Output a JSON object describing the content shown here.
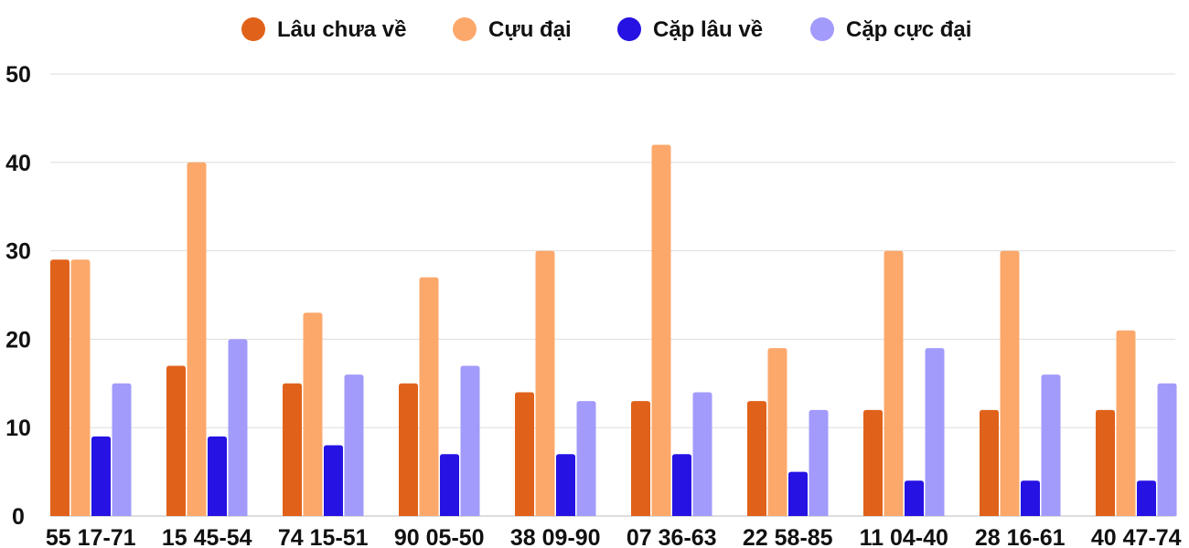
{
  "chart_data": {
    "type": "bar",
    "title": "",
    "xlabel": "",
    "ylabel": "",
    "ylim": [
      0,
      50
    ],
    "yticks": [
      0,
      10,
      20,
      30,
      40,
      50
    ],
    "grid": true,
    "legend_position": "top-center",
    "categories": [
      "55 17-71",
      "15 45-54",
      "74 15-51",
      "90 05-50",
      "38 09-90",
      "07 36-63",
      "22 58-85",
      "11 04-40",
      "28 16-61",
      "40 47-74"
    ],
    "series": [
      {
        "name": "Lâu chưa về",
        "color": "#e0621a",
        "values": [
          29,
          17,
          15,
          15,
          14,
          13,
          13,
          12,
          12,
          12
        ]
      },
      {
        "name": "Cựu đại",
        "color": "#fca86b",
        "values": [
          29,
          40,
          23,
          27,
          30,
          42,
          19,
          30,
          30,
          21
        ]
      },
      {
        "name": "Cặp lâu về",
        "color": "#2512e3",
        "values": [
          9,
          9,
          8,
          7,
          7,
          7,
          5,
          4,
          4,
          4
        ]
      },
      {
        "name": "Cặp cực đại",
        "color": "#a29bfb",
        "values": [
          15,
          20,
          16,
          17,
          13,
          14,
          12,
          19,
          16,
          15
        ]
      }
    ]
  }
}
